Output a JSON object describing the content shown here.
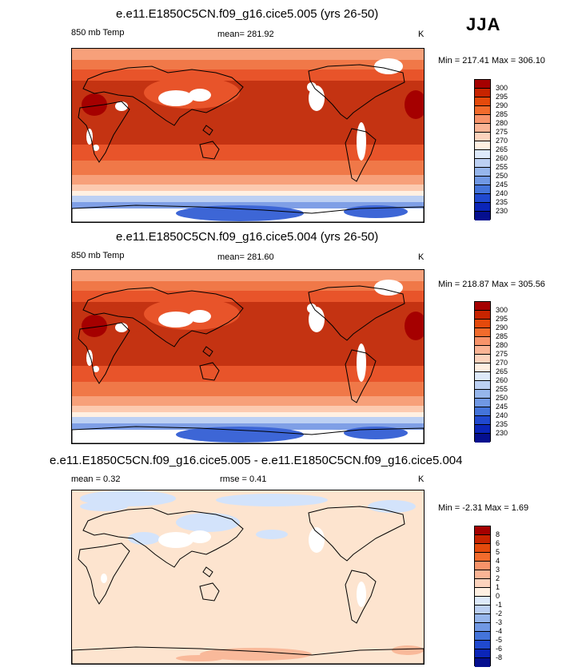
{
  "season": "JJA",
  "panels": [
    {
      "title": "e.e11.E1850C5CN.f09_g16.cice5.005 (yrs 26-50)",
      "left_label": "850 mb Temp",
      "center_label": "mean= 281.92",
      "unit": "K",
      "minmax": "Min = 217.41 Max = 306.10"
    },
    {
      "title": "e.e11.E1850C5CN.f09_g16.cice5.004 (yrs 26-50)",
      "left_label": "850 mb Temp",
      "center_label": "mean= 281.60",
      "unit": "K",
      "minmax": "Min = 218.87 Max = 305.56"
    },
    {
      "title": "e.e11.E1850C5CN.f09_g16.cice5.005 - e.e11.E1850C5CN.f09_g16.cice5.004",
      "left_label": "mean =   0.32",
      "center_label": "rmse =   0.41",
      "unit": "K",
      "minmax": "Min =  -2.31 Max =   1.69"
    }
  ],
  "temp_colorbar": {
    "labels": [
      "300",
      "295",
      "290",
      "285",
      "280",
      "275",
      "270",
      "265",
      "260",
      "255",
      "250",
      "245",
      "240",
      "235",
      "230"
    ],
    "colors": [
      "#a50000",
      "#c82400",
      "#e44a0c",
      "#f26b2c",
      "#f7936a",
      "#fab495",
      "#fcd3bd",
      "#fff0e2",
      "#dde9fa",
      "#bcd0f3",
      "#96b6ec",
      "#7098e4",
      "#4474da",
      "#2049cf",
      "#0b25b8",
      "#050f8f"
    ]
  },
  "diff_colorbar": {
    "labels": [
      "8",
      "6",
      "5",
      "4",
      "3",
      "2",
      "1",
      "0",
      "-1",
      "-2",
      "-3",
      "-4",
      "-5",
      "-6",
      "-8"
    ],
    "colors": [
      "#a50000",
      "#c82400",
      "#e44a0c",
      "#f26b2c",
      "#f7936a",
      "#fab495",
      "#fcd3bd",
      "#fff0e2",
      "#dde9fa",
      "#bcd0f3",
      "#96b6ec",
      "#7098e4",
      "#4474da",
      "#2049cf",
      "#0b25b8",
      "#050f8f"
    ]
  },
  "map_colors": {
    "hot": "#c43312",
    "warm": "#e8542a",
    "mid": "#f07848",
    "mild": "#f7a07a",
    "cool": "#fccab0",
    "pale": "#fff0e2",
    "cold1": "#bcd0f3",
    "cold2": "#7f9fe6",
    "cold3": "#3d66d6",
    "missing": "#ffffff",
    "diff_base": "#fde4cf",
    "diff_neg": "#d3e3fb",
    "diff_pos": "#f9b99a"
  }
}
